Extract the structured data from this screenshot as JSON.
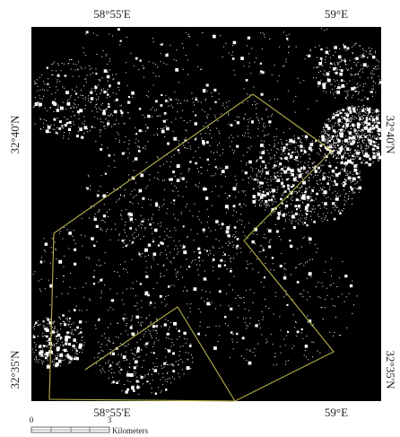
{
  "map": {
    "top_labels": [
      "58°55'E",
      "59°E"
    ],
    "bottom_labels": [
      "58°55'E",
      "59°E"
    ],
    "left_labels": [
      "32°40'N",
      "32°35'N"
    ],
    "right_labels": [
      "32°40'N",
      "32°35'N"
    ],
    "scale_bar": {
      "ticks": [
        "0",
        "3"
      ],
      "unit": "Kilometers"
    }
  }
}
